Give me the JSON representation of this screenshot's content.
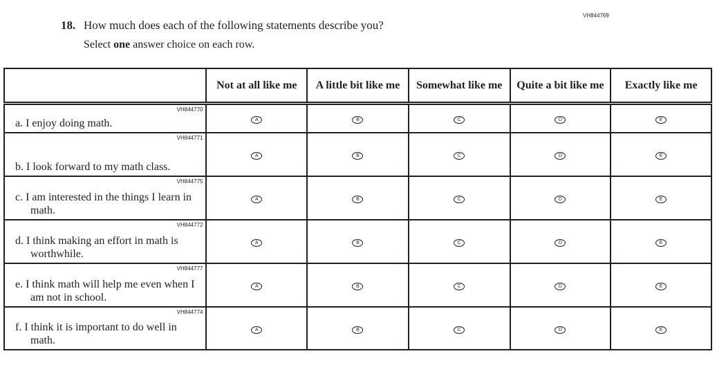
{
  "item_code": "VH844769",
  "question": {
    "number": "18.",
    "text": "How much does each of the following statements describe you?",
    "instruction_pre": "Select ",
    "instruction_bold": "one",
    "instruction_post": " answer choice on each row."
  },
  "columns": [
    "Not at all like me",
    "A little bit like me",
    "Somewhat like me",
    "Quite a bit like me",
    "Exactly like me"
  ],
  "bubbles": [
    "A",
    "B",
    "C",
    "D",
    "E"
  ],
  "rows": [
    {
      "id": "VH844770",
      "text": "a. I enjoy doing math."
    },
    {
      "id": "VH844771",
      "text": "b. I look forward to my math class."
    },
    {
      "id": "VH844775",
      "text": "c. I am interested in the things I learn in math."
    },
    {
      "id": "VH844772",
      "text": "d. I think making an effort in math is worthwhile."
    },
    {
      "id": "VH844777",
      "text": "e. I think math will help me even when I am not in school."
    },
    {
      "id": "VH844774",
      "text": "f. I think it is important to do well in math."
    }
  ]
}
